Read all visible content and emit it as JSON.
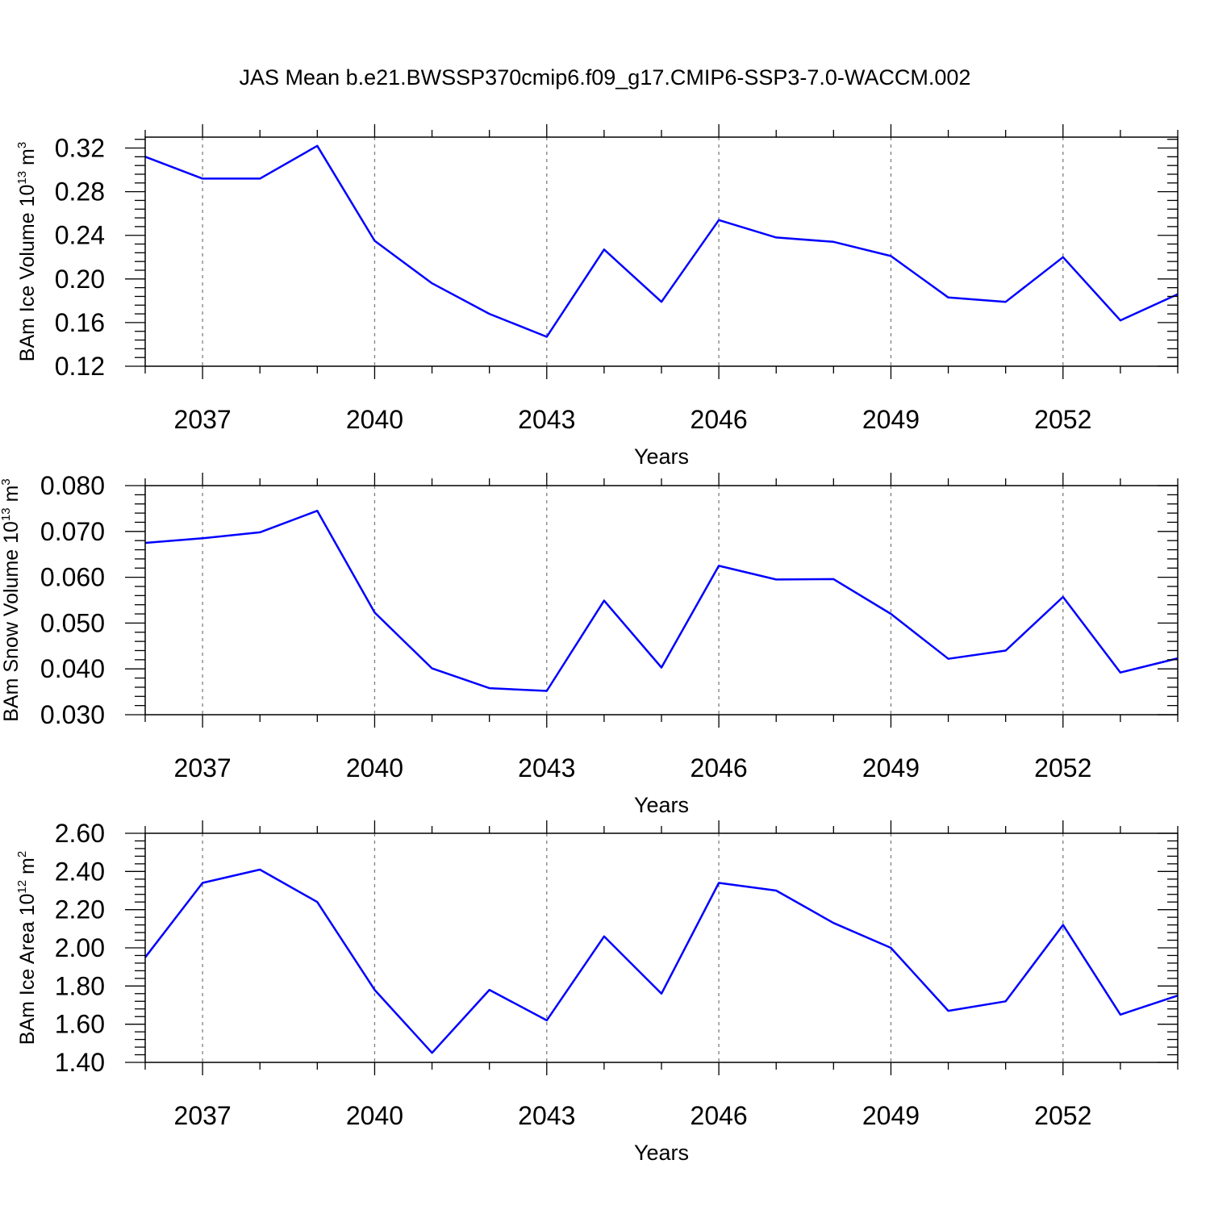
{
  "title": "JAS Mean b.e21.BWSSP370cmip6.f09_g17.CMIP6-SSP3-7.0-WACCM.002",
  "chart_data": [
    {
      "type": "line",
      "title": "JAS Mean b.e21.BWSSP370cmip6.f09_g17.CMIP6-SSP3-7.0-WACCM.002",
      "ylabel_main": "BAm Ice Volume 10",
      "ylabel_exp": "13",
      "ylabel_unit": " m",
      "ylabel_unit_exp": "3",
      "xlabel": "Years",
      "xlim": [
        2036,
        2054
      ],
      "ylim": [
        0.12,
        0.33
      ],
      "x_ticks": [
        2037,
        2040,
        2043,
        2046,
        2049,
        2052
      ],
      "x_tick_labels": [
        "2037",
        "2040",
        "2043",
        "2046",
        "2049",
        "2052"
      ],
      "y_ticks": [
        0.12,
        0.16,
        0.2,
        0.24,
        0.28,
        0.32
      ],
      "y_tick_labels": [
        "0.12",
        "0.16",
        "0.20",
        "0.24",
        "0.28",
        "0.32"
      ],
      "y_minor_step": 0.008,
      "grid": "x-dashed",
      "line_color": "#0000ff",
      "series": [
        {
          "name": "BAm Ice Volume",
          "x": [
            2036,
            2037,
            2038,
            2039,
            2040,
            2041,
            2042,
            2043,
            2044,
            2045,
            2046,
            2047,
            2048,
            2049,
            2050,
            2051,
            2052,
            2053,
            2054
          ],
          "values": [
            0.312,
            0.292,
            0.292,
            0.322,
            0.235,
            0.196,
            0.168,
            0.147,
            0.227,
            0.179,
            0.254,
            0.238,
            0.234,
            0.221,
            0.183,
            0.179,
            0.22,
            0.162,
            0.186
          ]
        }
      ]
    },
    {
      "type": "line",
      "ylabel_main": "BAm Snow Volume 10",
      "ylabel_exp": "13",
      "ylabel_unit": " m",
      "ylabel_unit_exp": "3",
      "xlabel": "Years",
      "xlim": [
        2036,
        2054
      ],
      "ylim": [
        0.03,
        0.08
      ],
      "x_ticks": [
        2037,
        2040,
        2043,
        2046,
        2049,
        2052
      ],
      "x_tick_labels": [
        "2037",
        "2040",
        "2043",
        "2046",
        "2049",
        "2052"
      ],
      "y_ticks": [
        0.03,
        0.04,
        0.05,
        0.06,
        0.07,
        0.08
      ],
      "y_tick_labels": [
        "0.030",
        "0.040",
        "0.050",
        "0.060",
        "0.070",
        "0.080"
      ],
      "y_minor_step": 0.002,
      "grid": "x-dashed",
      "line_color": "#0000ff",
      "series": [
        {
          "name": "BAm Snow Volume",
          "x": [
            2036,
            2037,
            2038,
            2039,
            2040,
            2041,
            2042,
            2043,
            2044,
            2045,
            2046,
            2047,
            2048,
            2049,
            2050,
            2051,
            2052,
            2053,
            2054
          ],
          "values": [
            0.0675,
            0.0685,
            0.0698,
            0.0745,
            0.0523,
            0.0401,
            0.0358,
            0.0352,
            0.0549,
            0.0403,
            0.0625,
            0.0595,
            0.0596,
            0.052,
            0.0422,
            0.044,
            0.0557,
            0.0392,
            0.0423
          ]
        }
      ]
    },
    {
      "type": "line",
      "ylabel_main": "BAm Ice Area 10",
      "ylabel_exp": "12",
      "ylabel_unit": " m",
      "ylabel_unit_exp": "2",
      "xlabel": "Years",
      "xlim": [
        2036,
        2054
      ],
      "ylim": [
        1.4,
        2.6
      ],
      "x_ticks": [
        2037,
        2040,
        2043,
        2046,
        2049,
        2052
      ],
      "x_tick_labels": [
        "2037",
        "2040",
        "2043",
        "2046",
        "2049",
        "2052"
      ],
      "y_ticks": [
        1.4,
        1.6,
        1.8,
        2.0,
        2.2,
        2.4,
        2.6
      ],
      "y_tick_labels": [
        "1.40",
        "1.60",
        "1.80",
        "2.00",
        "2.20",
        "2.40",
        "2.60"
      ],
      "y_minor_step": 0.04,
      "grid": "x-dashed",
      "line_color": "#0000ff",
      "series": [
        {
          "name": "BAm Ice Area",
          "x": [
            2036,
            2037,
            2038,
            2039,
            2040,
            2041,
            2042,
            2043,
            2044,
            2045,
            2046,
            2047,
            2048,
            2049,
            2050,
            2051,
            2052,
            2053,
            2054
          ],
          "values": [
            1.95,
            2.34,
            2.41,
            2.24,
            1.78,
            1.45,
            1.78,
            1.62,
            2.06,
            1.76,
            2.34,
            2.3,
            2.13,
            2.0,
            1.67,
            1.72,
            2.12,
            1.65,
            1.75
          ]
        }
      ]
    }
  ]
}
